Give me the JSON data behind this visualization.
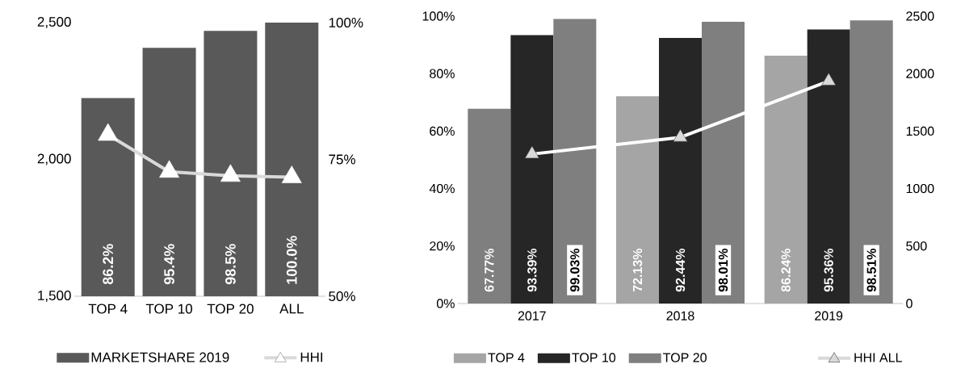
{
  "chart_data": [
    {
      "type": "bar",
      "categories": [
        "TOP 4",
        "TOP 10",
        "TOP 20",
        "ALL"
      ],
      "series": [
        {
          "name": "MARKETSHARE 2019",
          "color": "#595959",
          "axis": "y2",
          "values": [
            86.2,
            95.4,
            98.5,
            100.0
          ],
          "value_labels": [
            "86.2%",
            "95.4%",
            "98.5%",
            "100.0%"
          ]
        },
        {
          "name": "HHI",
          "type": "line",
          "color": "#d9d9d9",
          "marker": "triangle",
          "values": [
            2090,
            1955,
            1940,
            1935
          ]
        }
      ],
      "ylim": [
        1500,
        2500
      ],
      "yticks": [
        {
          "value": 1500,
          "label": "1,500"
        },
        {
          "value": 2000,
          "label": "2,000"
        },
        {
          "value": 2500,
          "label": "2,500"
        }
      ],
      "y2lim": [
        50,
        100
      ],
      "y2ticks": [
        {
          "value": 50,
          "label": "50%"
        },
        {
          "value": 75,
          "label": "75%"
        },
        {
          "value": 100,
          "label": "100%"
        }
      ],
      "legend": "bottom"
    },
    {
      "type": "bar",
      "categories": [
        "2017",
        "2018",
        "2019"
      ],
      "series": [
        {
          "name": "TOP 4",
          "color": "#a5a5a5",
          "colors": [
            "#7f7f7f",
            "#a5a5a5",
            "#a5a5a5"
          ],
          "values": [
            67.77,
            72.13,
            86.24
          ],
          "value_labels": [
            "67.77%",
            "72.13%",
            "86.24%"
          ]
        },
        {
          "name": "TOP 10",
          "color": "#262626",
          "values": [
            93.39,
            92.44,
            95.36
          ],
          "value_labels": [
            "93.39%",
            "92.44%",
            "95.36%"
          ]
        },
        {
          "name": "TOP 20",
          "color": "#7f7f7f",
          "values": [
            99.03,
            98.01,
            98.51
          ],
          "value_labels": [
            "99.03%",
            "98.01%",
            "98.51%"
          ]
        },
        {
          "name": "HHI ALL",
          "type": "line",
          "color": "#ffffff",
          "marker": "triangle",
          "axis": "y2",
          "values": [
            1300,
            1445,
            1935
          ]
        }
      ],
      "ylim": [
        0,
        100
      ],
      "yticks": [
        {
          "value": 0,
          "label": "0%"
        },
        {
          "value": 20,
          "label": "20%"
        },
        {
          "value": 40,
          "label": "40%"
        },
        {
          "value": 60,
          "label": "60%"
        },
        {
          "value": 80,
          "label": "80%"
        },
        {
          "value": 100,
          "label": "100%"
        }
      ],
      "y2lim": [
        0,
        2500
      ],
      "y2ticks": [
        0,
        500,
        1000,
        1500,
        2000,
        2500
      ],
      "legend": "bottom"
    }
  ]
}
